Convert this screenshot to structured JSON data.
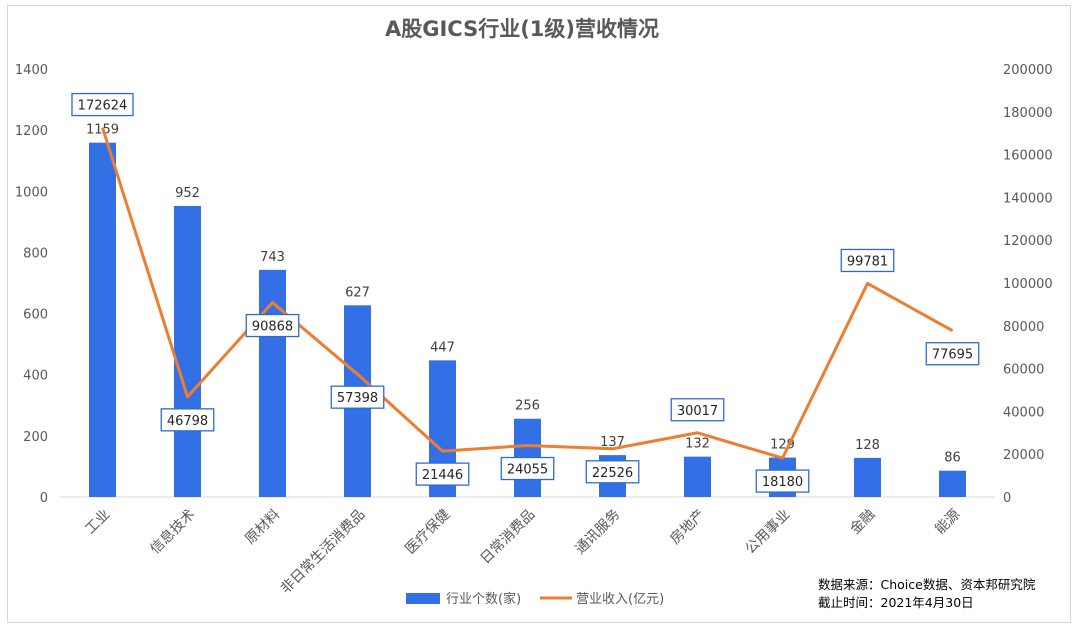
{
  "chart_data": {
    "type": "bar",
    "title": "A股GICS行业(1级)营收情况",
    "categories": [
      "工业",
      "信息技术",
      "原材料",
      "非日常生活消费品",
      "医疗保健",
      "日常消费品",
      "通讯服务",
      "房地产",
      "公用事业",
      "金融",
      "能源"
    ],
    "series": [
      {
        "name": "行业个数(家)",
        "type": "bar",
        "axis": "left",
        "color": "#3370e6",
        "values": [
          1159,
          952,
          743,
          627,
          447,
          256,
          137,
          132,
          129,
          128,
          86
        ]
      },
      {
        "name": "营业收入(亿元)",
        "type": "line",
        "axis": "right",
        "color": "#ed7d31",
        "values": [
          172624,
          46798,
          90868,
          57398,
          21446,
          24055,
          22526,
          30017,
          18180,
          99781,
          77695
        ]
      }
    ],
    "y_left": {
      "ylim": [
        0,
        1400
      ],
      "ticks": [
        "0",
        "200",
        "400",
        "600",
        "800",
        "1000",
        "1200",
        "1400"
      ]
    },
    "y_right": {
      "ylim": [
        0,
        200000
      ],
      "ticks": [
        "0",
        "20000",
        "40000",
        "60000",
        "80000",
        "100000",
        "120000",
        "140000",
        "160000",
        "180000",
        "200000"
      ]
    },
    "grid": false,
    "legend_position": "bottom-center"
  },
  "source_note": {
    "line1": "数据来源：Choice数据、资本邦研究院",
    "line2": "截止时间：2021年4月30日"
  }
}
